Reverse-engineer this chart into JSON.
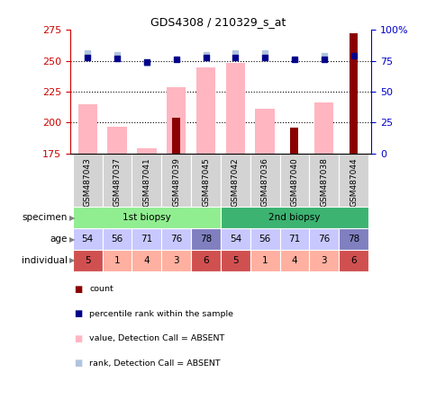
{
  "title": "GDS4308 / 210329_s_at",
  "samples": [
    "GSM487043",
    "GSM487037",
    "GSM487041",
    "GSM487039",
    "GSM487045",
    "GSM487042",
    "GSM487036",
    "GSM487040",
    "GSM487038",
    "GSM487044"
  ],
  "count_values": [
    null,
    null,
    null,
    204,
    null,
    null,
    null,
    196,
    null,
    272
  ],
  "value_absent": [
    215,
    197,
    179,
    229,
    245,
    248,
    211,
    null,
    216,
    null
  ],
  "percentile_rank": [
    78,
    77,
    74,
    76,
    78,
    78,
    78,
    76,
    76,
    79
  ],
  "rank_absent": [
    81,
    80,
    73,
    null,
    80,
    81,
    81,
    null,
    79,
    null
  ],
  "ylim": [
    175,
    275
  ],
  "y2lim": [
    0,
    100
  ],
  "yticks": [
    175,
    200,
    225,
    250,
    275
  ],
  "y2ticks": [
    0,
    25,
    50,
    75,
    100
  ],
  "y2ticklabels": [
    "0",
    "25",
    "50",
    "75",
    "100%"
  ],
  "dotted_lines": [
    200,
    225,
    250
  ],
  "age": [
    54,
    56,
    71,
    76,
    78,
    54,
    56,
    71,
    76,
    78
  ],
  "individual": [
    5,
    1,
    4,
    3,
    6,
    5,
    1,
    4,
    3,
    6
  ],
  "specimen_labels": [
    "1st biopsy",
    "2nd biopsy"
  ],
  "specimen_spans": [
    [
      0,
      4
    ],
    [
      5,
      9
    ]
  ],
  "row_labels": [
    "specimen",
    "age",
    "individual"
  ],
  "color_bar_dark": "#8B0000",
  "color_bar_absent": "#FFB6C1",
  "color_dot_rank": "#00008B",
  "color_dot_rank_absent": "#B0C4DE",
  "color_specimen_1": "#90EE90",
  "color_specimen_2": "#3CB371",
  "color_age_light": "#C8C8FF",
  "color_age_dark": "#8080C0",
  "color_ind_light": "#FFB0A0",
  "color_ind_dark": "#D05050",
  "color_ytick_left": "#CC0000",
  "color_ytick_right": "#0000CC",
  "age_dark_indices": [
    4,
    9
  ],
  "ind_dark_indices": [
    0,
    4,
    5,
    9
  ],
  "height_ratios": [
    3.0,
    1.3,
    0.52,
    0.52,
    0.52
  ]
}
